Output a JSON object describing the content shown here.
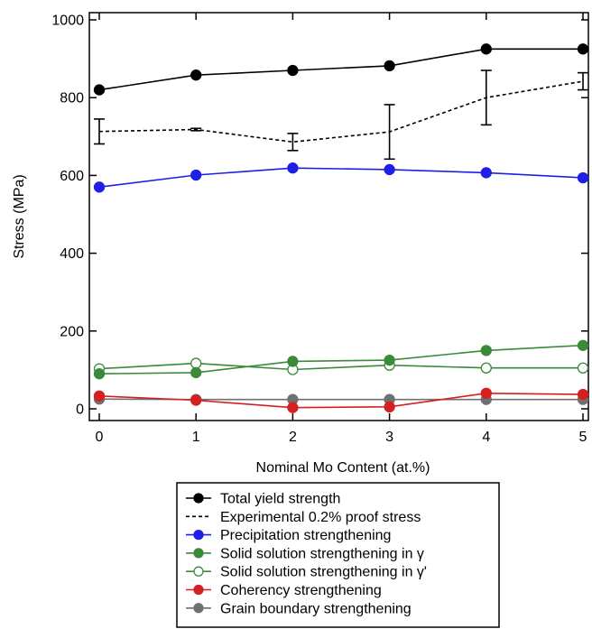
{
  "chart_data": {
    "type": "line",
    "xlabel": "Nominal Mo Content (at.%)",
    "ylabel": "Stress (MPa)",
    "xlim": [
      0,
      5
    ],
    "ylim": [
      -20,
      1025
    ],
    "xticks": [
      0,
      1,
      2,
      3,
      4,
      5
    ],
    "yticks": [
      0,
      200,
      400,
      600,
      800,
      1000
    ],
    "x": [
      0,
      1,
      2,
      3,
      4,
      5
    ],
    "grid": false,
    "legend_position": "bottom",
    "series": [
      {
        "name": "Total yield strength",
        "values": [
          820,
          858,
          870,
          882,
          925,
          925
        ],
        "color": "#000000",
        "marker": "filled-circle",
        "line": "solid"
      },
      {
        "name": "Experimental 0.2% proof stress",
        "values": [
          713,
          718,
          686,
          712,
          800,
          842
        ],
        "error": [
          32,
          3,
          22,
          70,
          70,
          22
        ],
        "color": "#000000",
        "marker": "none",
        "line": "dashed"
      },
      {
        "name": "Precipitation strengthening",
        "values": [
          570,
          601,
          619,
          615,
          607,
          594
        ],
        "color": "#1f1fe6",
        "marker": "filled-circle",
        "line": "solid"
      },
      {
        "name": "Solid solution strengthening in γ",
        "values": [
          90,
          93,
          122,
          125,
          150,
          163
        ],
        "color": "#3a8a3a",
        "marker": "filled-circle",
        "line": "solid"
      },
      {
        "name": "Solid solution strengthening in γ'",
        "values": [
          103,
          117,
          101,
          112,
          105,
          105
        ],
        "color": "#3a8a3a",
        "marker": "open-circle",
        "line": "solid"
      },
      {
        "name": "Coherency strengthening",
        "values": [
          33,
          22,
          3,
          5,
          40,
          37
        ],
        "color": "#d42020",
        "marker": "filled-circle",
        "line": "solid"
      },
      {
        "name": "Grain boundary strengthening",
        "values": [
          25,
          24,
          24,
          24,
          24,
          24
        ],
        "color": "#707070",
        "marker": "filled-circle",
        "line": "solid"
      }
    ]
  }
}
